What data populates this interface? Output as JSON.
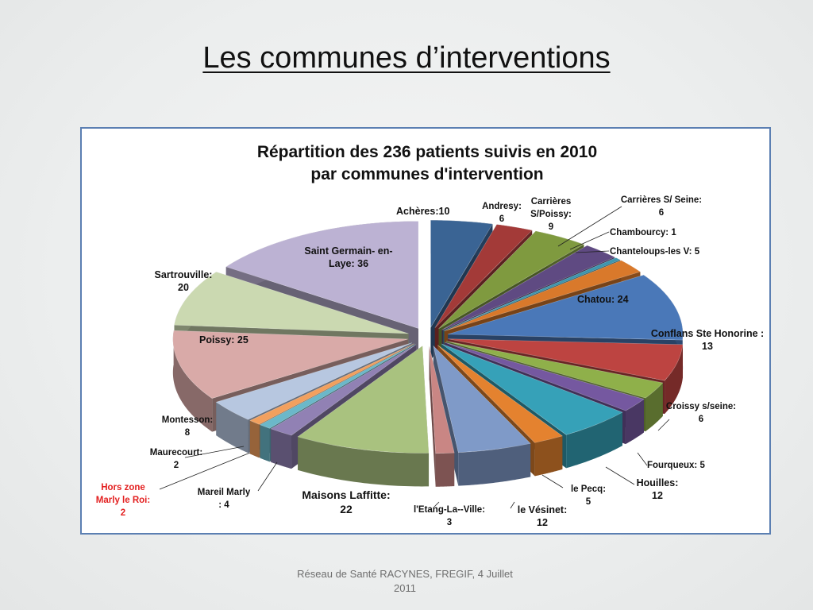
{
  "slide": {
    "title": "Les communes d’interventions",
    "footer_line1": "Réseau de Santé RACYNES, FREGIF, 4 Juillet",
    "footer_line2": "2011"
  },
  "chart_data": {
    "type": "pie",
    "title": "Répartition des 236 patients suivis en 2010",
    "title_line2": "par communes d'intervention",
    "total": 236,
    "slices": [
      {
        "name": "Achères",
        "value": 10,
        "color": "#3a6494",
        "label": "Achères:10"
      },
      {
        "name": "Andresy",
        "value": 6,
        "color": "#a33a38",
        "label_1": "Andresy:",
        "label_2": "6"
      },
      {
        "name": "Carrières S/Poissy",
        "value": 9,
        "color": "#7f9a3f",
        "label_1": "Carrières",
        "label_2": "S/Poissy:",
        "label_3": "9"
      },
      {
        "name": "Carrières S/ Seine",
        "value": 6,
        "color": "#5f4a82",
        "label_1": "Carrières  S/ Seine:",
        "label_2": "6"
      },
      {
        "name": "Chambourcy",
        "value": 1,
        "color": "#3e96ae",
        "label": "Chambourcy: 1"
      },
      {
        "name": "Chanteloups-les V",
        "value": 5,
        "color": "#d9792b",
        "label": "Chanteloups-les V: 5"
      },
      {
        "name": "Chatou",
        "value": 24,
        "color": "#4a78b8",
        "label": "Chatou: 24"
      },
      {
        "name": "Conflans Ste Honorine",
        "value": 13,
        "color": "#bd4441",
        "label_1": "Conflans Ste Honorine :",
        "label_2": "13"
      },
      {
        "name": "Croissy s/seine",
        "value": 6,
        "color": "#8fb04a",
        "label_1": "Croissy s/seine:",
        "label_2": "6"
      },
      {
        "name": "Fourqueux",
        "value": 5,
        "color": "#7558a0",
        "label": "Fourqueux: 5"
      },
      {
        "name": "Houilles",
        "value": 12,
        "color": "#36a1b8",
        "label_1": "Houilles:",
        "label_2": "12"
      },
      {
        "name": "le Pecq",
        "value": 5,
        "color": "#e4822f",
        "label_1": "le Pecq:",
        "label_2": "5"
      },
      {
        "name": "le Vésinet",
        "value": 12,
        "color": "#7f9ac8",
        "label": "le Vésinet:",
        "label_2": "12"
      },
      {
        "name": "l'Etang-La--Ville",
        "value": 3,
        "color": "#c98684",
        "label_1": "l'Etang-La--Ville:",
        "label_2": "3"
      },
      {
        "name": "Maisons Laffitte",
        "value": 22,
        "color": "#a9c27f",
        "label_1": "Maisons Laffitte:",
        "label_2": "22"
      },
      {
        "name": "Mareil Marly",
        "value": 4,
        "color": "#9181b4",
        "label_1": "Mareil Marly",
        "label_2": ": 4"
      },
      {
        "name": "Hors zone Marly le Roi",
        "value": 2,
        "color": "#6bb8c9",
        "label_1": "Hors zone",
        "label_2": "Marly le Roi:",
        "label_3": "2",
        "label_color": "#e32020"
      },
      {
        "name": "Maurecourt",
        "value": 2,
        "color": "#f2a05e",
        "label_1": "Maurecourt:",
        "label_2": "2"
      },
      {
        "name": "Montesson",
        "value": 8,
        "color": "#b7c7e0",
        "label_1": "Montesson:",
        "label_2": "8"
      },
      {
        "name": "Poissy",
        "value": 25,
        "color": "#d9aaa8",
        "label": "Poissy: 25"
      },
      {
        "name": "Sartrouville",
        "value": 20,
        "color": "#cbd9b1",
        "label_1": "Sartrouville:",
        "label_2": "20"
      },
      {
        "name": "Saint Germain- en-Laye",
        "value": 36,
        "color": "#bcb2d3",
        "label_1": "Saint Germain- en-",
        "label_2": "Laye: 36"
      }
    ],
    "style": "3d-exploded",
    "legend": "none"
  }
}
